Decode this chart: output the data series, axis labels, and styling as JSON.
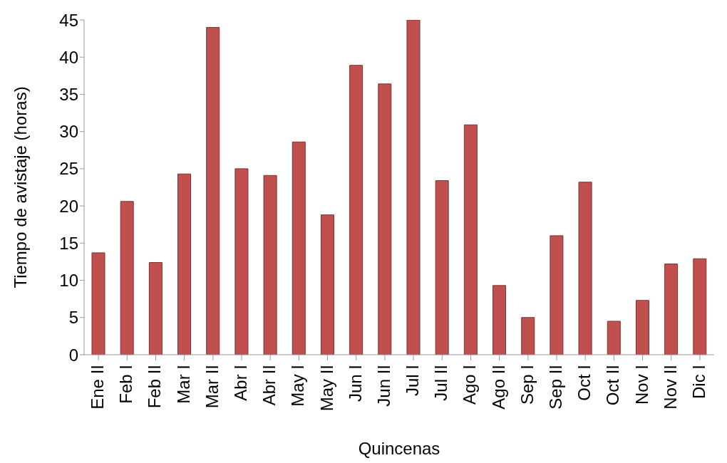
{
  "chart_data": {
    "type": "bar",
    "xlabel": "Quincenas",
    "ylabel": "Tiempo de avistaje (horas)",
    "categories": [
      "Ene II",
      "Feb I",
      "Feb II",
      "Mar I",
      "Mar II",
      "Abr I",
      "Abr II",
      "May I",
      "May II",
      "Jun I",
      "Jun II",
      "Jul I",
      "Jul II",
      "Ago I",
      "Ago II",
      "Sep I",
      "Sep II",
      "Oct I",
      "Oct II",
      "Nov I",
      "Nov II",
      "Dic I"
    ],
    "values": [
      13.7,
      20.6,
      12.4,
      24.3,
      44,
      25,
      24.1,
      28.6,
      18.8,
      38.9,
      36.4,
      45,
      23.4,
      30.9,
      9.3,
      5,
      16,
      23.2,
      4.5,
      7.3,
      12.2,
      12.9
    ],
    "color": "#c0504d",
    "ylim": [
      0,
      45
    ],
    "yticks": [
      0,
      5,
      10,
      15,
      20,
      25,
      30,
      35,
      40,
      45
    ],
    "grid": false,
    "legend": false
  }
}
